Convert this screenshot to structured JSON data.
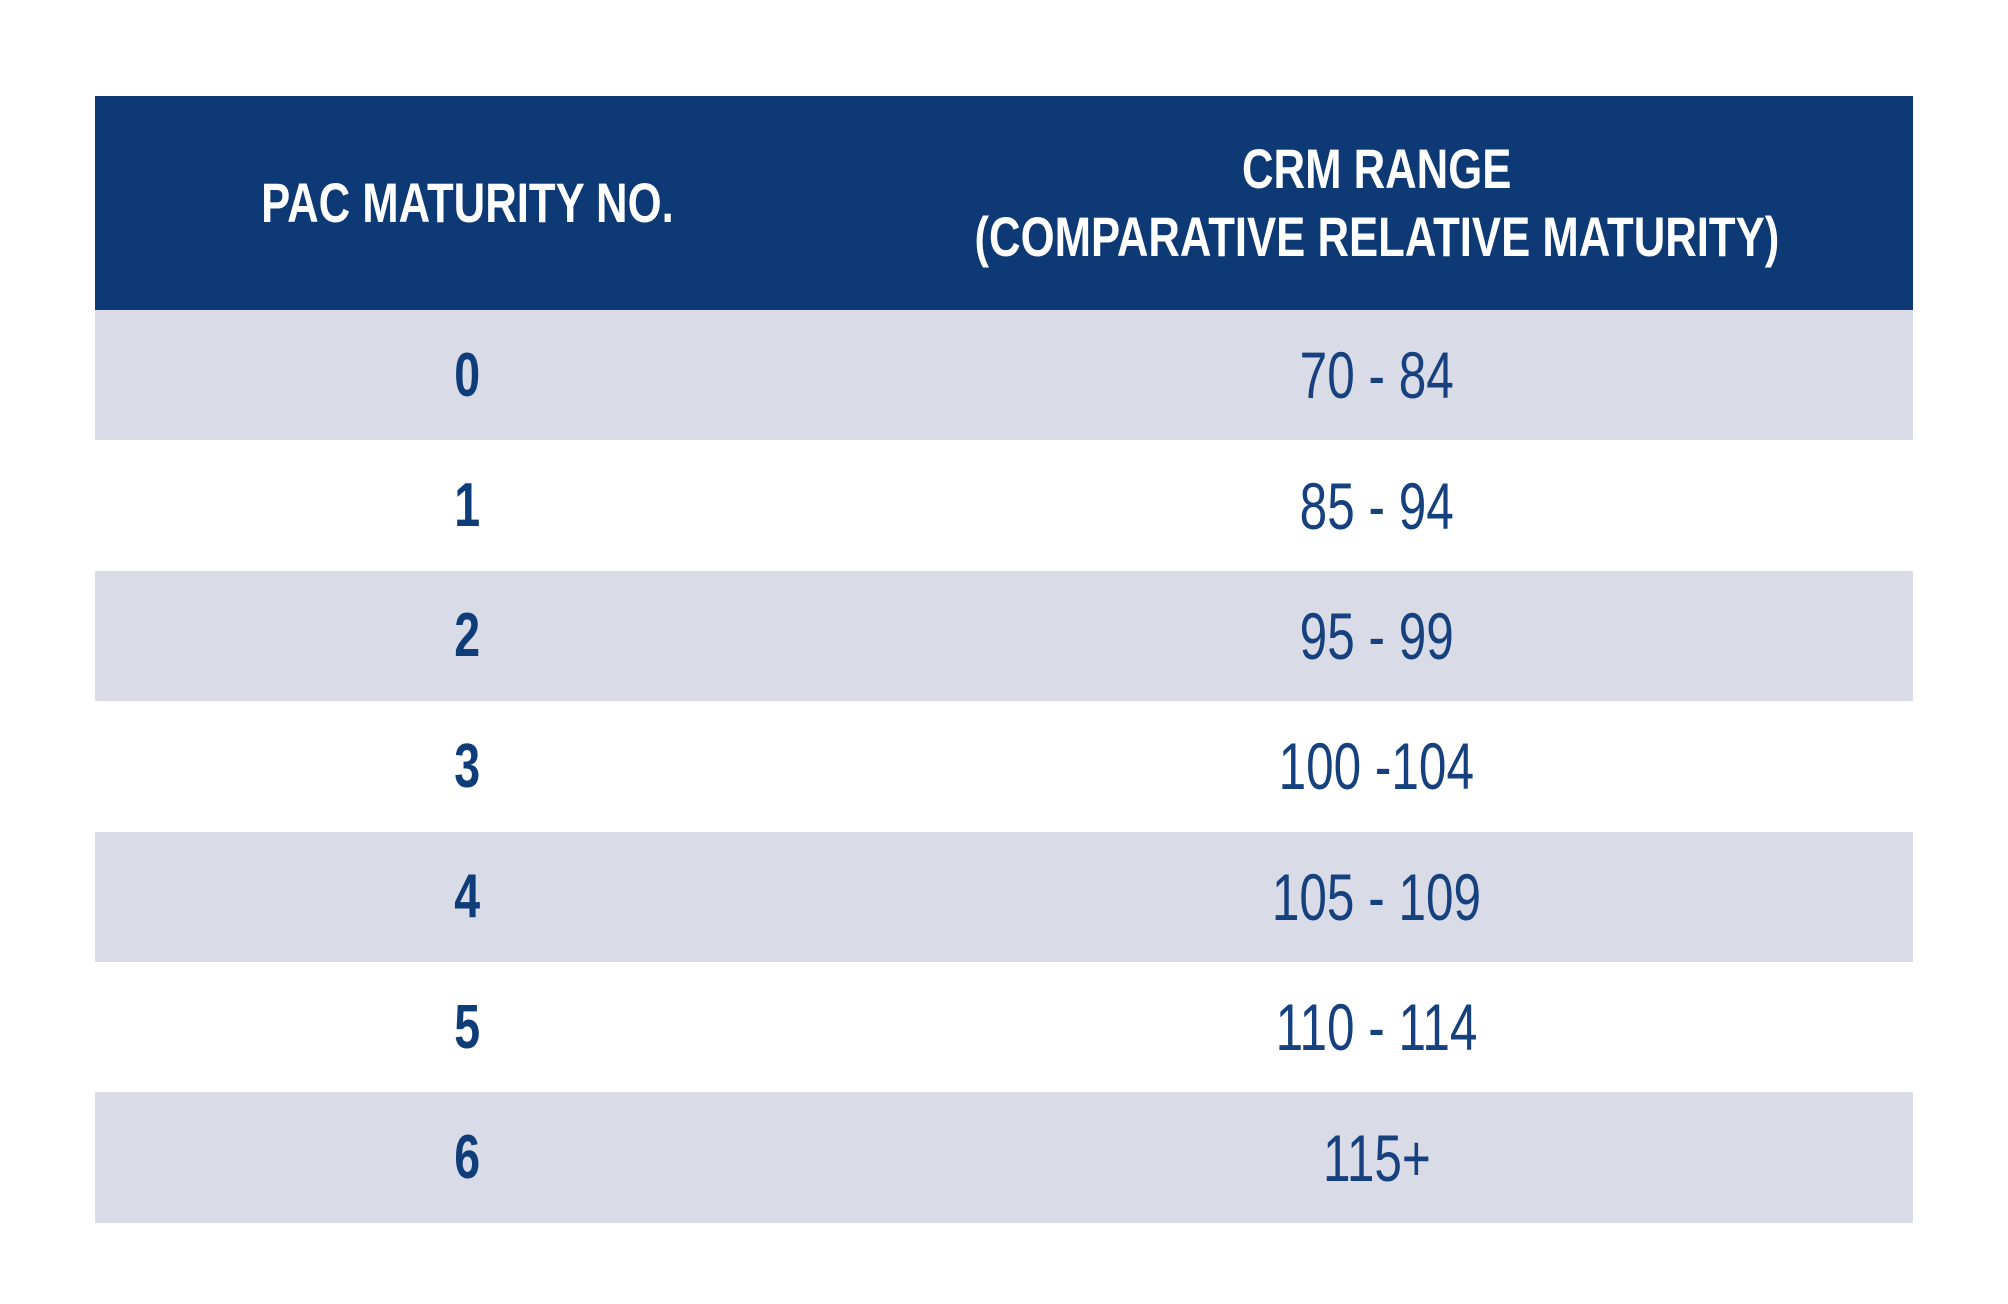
{
  "colors": {
    "page_bg": "#ffffff",
    "header_bg": "#0d3a74",
    "header_text": "#ffffff",
    "row_alt_bg": "#d9dbe7",
    "row_bg": "#ffffff",
    "cell_text": "#16417e",
    "cell_no_text": "#0f3d7a"
  },
  "table": {
    "header": {
      "col1": "PAC MATURITY NO.",
      "col2_line1": "CRM RANGE",
      "col2_line2": "(COMPARATIVE RELATIVE MATURITY)"
    },
    "rows": [
      {
        "no": "0",
        "range": "70 - 84"
      },
      {
        "no": "1",
        "range": "85 - 94"
      },
      {
        "no": "2",
        "range": "95 - 99"
      },
      {
        "no": "3",
        "range": "100 -104"
      },
      {
        "no": "4",
        "range": "105 - 109"
      },
      {
        "no": "5",
        "range": "110 - 114"
      },
      {
        "no": "6",
        "range": "115+"
      }
    ]
  },
  "chart_data": {
    "type": "table",
    "title": "",
    "columns": [
      "PAC MATURITY NO.",
      "CRM RANGE (COMPARATIVE RELATIVE MATURITY)"
    ],
    "rows": [
      [
        "0",
        "70 - 84"
      ],
      [
        "1",
        "85 - 94"
      ],
      [
        "2",
        "95 - 99"
      ],
      [
        "3",
        "100 -104"
      ],
      [
        "4",
        "105 - 109"
      ],
      [
        "5",
        "110 - 114"
      ],
      [
        "6",
        "115+"
      ]
    ],
    "layout": {
      "header_background": "#0d3a74",
      "alternating_row_background": "#d9dbe7",
      "grid": false,
      "borders": false
    }
  }
}
